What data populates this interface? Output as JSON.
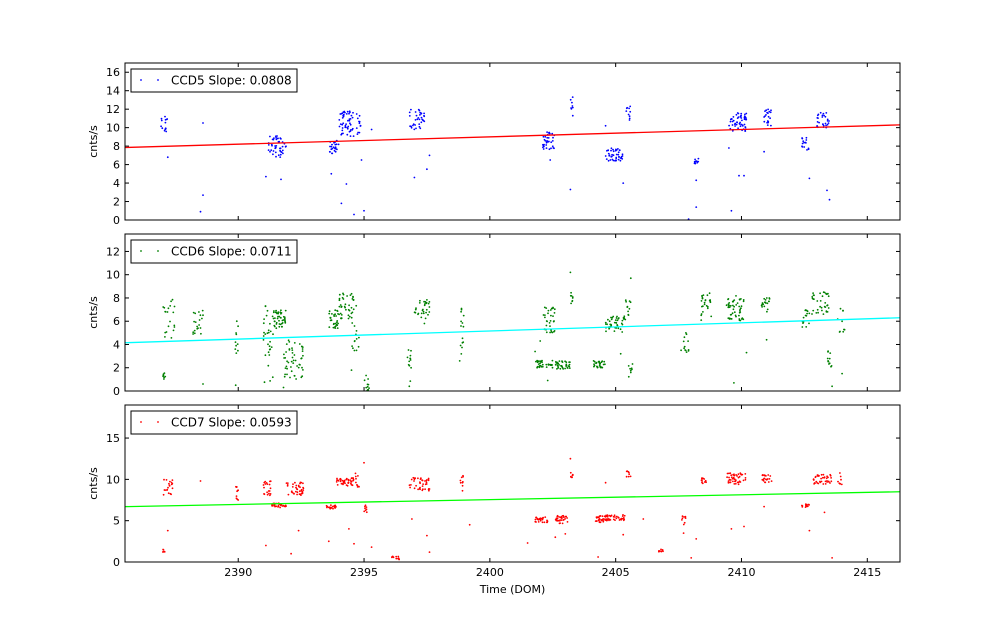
{
  "chart_data": [
    {
      "type": "scatter",
      "ylabel": "cnts/s",
      "xlim": [
        2385.5,
        2416.3
      ],
      "ylim": [
        0,
        17
      ],
      "yticks": [
        0,
        2,
        4,
        6,
        8,
        10,
        12,
        14,
        16
      ],
      "xticks": [
        2390,
        2395,
        2400,
        2405,
        2410,
        2415
      ],
      "legend": {
        "label": "CCD5 Slope: 0.0808",
        "placement": "top-left"
      },
      "point_color": "#0000ff",
      "fit_color": "#ff0000",
      "fit_line": {
        "x": [
          2385.5,
          2416.3
        ],
        "y": [
          7.85,
          10.3
        ]
      },
      "clusters": [
        {
          "x0": 2386.9,
          "x1": 2387.2,
          "ymin": 9.2,
          "ymax": 11.2,
          "n": 14
        },
        {
          "x0": 2391.2,
          "x1": 2391.9,
          "ymin": 6.8,
          "ymax": 9.2,
          "n": 45
        },
        {
          "x0": 2393.6,
          "x1": 2394.0,
          "ymin": 7.2,
          "ymax": 8.6,
          "n": 25
        },
        {
          "x0": 2394.0,
          "x1": 2394.6,
          "ymin": 9.0,
          "ymax": 11.8,
          "n": 50
        },
        {
          "x0": 2394.7,
          "x1": 2394.9,
          "ymin": 9.2,
          "ymax": 11.5,
          "n": 12
        },
        {
          "x0": 2396.8,
          "x1": 2397.4,
          "ymin": 9.8,
          "ymax": 12.0,
          "n": 35
        },
        {
          "x0": 2402.1,
          "x1": 2402.6,
          "ymin": 7.6,
          "ymax": 9.6,
          "n": 35
        },
        {
          "x0": 2403.2,
          "x1": 2403.3,
          "ymin": 11.0,
          "ymax": 13.4,
          "n": 8
        },
        {
          "x0": 2404.6,
          "x1": 2405.3,
          "ymin": 6.4,
          "ymax": 7.8,
          "n": 45
        },
        {
          "x0": 2405.4,
          "x1": 2405.6,
          "ymin": 10.8,
          "ymax": 12.3,
          "n": 10
        },
        {
          "x0": 2408.1,
          "x1": 2408.3,
          "ymin": 6.0,
          "ymax": 6.9,
          "n": 10
        },
        {
          "x0": 2409.5,
          "x1": 2410.2,
          "ymin": 9.6,
          "ymax": 11.6,
          "n": 55
        },
        {
          "x0": 2410.9,
          "x1": 2411.2,
          "ymin": 10.2,
          "ymax": 12.2,
          "n": 20
        },
        {
          "x0": 2412.4,
          "x1": 2412.7,
          "ymin": 7.5,
          "ymax": 9.0,
          "n": 15
        },
        {
          "x0": 2413.0,
          "x1": 2413.5,
          "ymin": 10.0,
          "ymax": 11.8,
          "n": 28
        }
      ],
      "outliers": [
        [
          2388.6,
          10.5
        ],
        [
          2388.5,
          0.9
        ],
        [
          2388.6,
          2.7
        ],
        [
          2387.2,
          6.8
        ],
        [
          2391.1,
          4.7
        ],
        [
          2391.7,
          4.4
        ],
        [
          2393.7,
          5.0
        ],
        [
          2394.1,
          1.8
        ],
        [
          2394.3,
          3.9
        ],
        [
          2394.6,
          0.6
        ],
        [
          2395.0,
          1.0
        ],
        [
          2394.9,
          6.5
        ],
        [
          2397.0,
          4.6
        ],
        [
          2397.5,
          5.5
        ],
        [
          2395.3,
          9.8
        ],
        [
          2397.6,
          7.0
        ],
        [
          2402.4,
          6.5
        ],
        [
          2403.2,
          3.3
        ],
        [
          2404.6,
          10.2
        ],
        [
          2405.3,
          4.0
        ],
        [
          2408.2,
          1.4
        ],
        [
          2408.2,
          4.3
        ],
        [
          2407.9,
          0.1
        ],
        [
          2409.6,
          1.0
        ],
        [
          2409.9,
          4.8
        ],
        [
          2410.1,
          4.8
        ],
        [
          2410.9,
          7.4
        ],
        [
          2412.7,
          4.5
        ],
        [
          2413.4,
          3.2
        ],
        [
          2413.5,
          2.2
        ],
        [
          2409.5,
          7.8
        ]
      ]
    },
    {
      "type": "scatter",
      "ylabel": "cnts/s",
      "xlim": [
        2385.5,
        2416.3
      ],
      "ylim": [
        0,
        13.5
      ],
      "yticks": [
        0,
        2,
        4,
        6,
        8,
        10,
        12
      ],
      "xticks": [
        2390,
        2395,
        2400,
        2405,
        2410,
        2415
      ],
      "legend": {
        "label": "CCD6 Slope: 0.0711",
        "placement": "top-left"
      },
      "point_color": "#008000",
      "fit_color": "#00ffff",
      "fit_line": {
        "x": [
          2385.5,
          2416.3
        ],
        "y": [
          4.15,
          6.3
        ]
      },
      "clusters": [
        {
          "x0": 2387.0,
          "x1": 2387.1,
          "ymin": 1.0,
          "ymax": 1.6,
          "n": 8
        },
        {
          "x0": 2387.0,
          "x1": 2387.5,
          "ymin": 4.5,
          "ymax": 8.0,
          "n": 20
        },
        {
          "x0": 2388.2,
          "x1": 2388.6,
          "ymin": 4.8,
          "ymax": 7.0,
          "n": 20
        },
        {
          "x0": 2389.8,
          "x1": 2390.0,
          "ymin": 3.0,
          "ymax": 6.2,
          "n": 10
        },
        {
          "x0": 2391.0,
          "x1": 2391.4,
          "ymin": 0.5,
          "ymax": 7.5,
          "n": 30
        },
        {
          "x0": 2391.4,
          "x1": 2391.9,
          "ymin": 5.4,
          "ymax": 7.0,
          "n": 45
        },
        {
          "x0": 2391.8,
          "x1": 2392.6,
          "ymin": 1.0,
          "ymax": 4.5,
          "n": 50
        },
        {
          "x0": 2393.6,
          "x1": 2394.0,
          "ymin": 5.4,
          "ymax": 7.0,
          "n": 30
        },
        {
          "x0": 2394.0,
          "x1": 2394.6,
          "ymin": 6.2,
          "ymax": 8.4,
          "n": 40
        },
        {
          "x0": 2394.5,
          "x1": 2394.8,
          "ymin": 3.0,
          "ymax": 7.5,
          "n": 15
        },
        {
          "x0": 2395.0,
          "x1": 2395.2,
          "ymin": 0.0,
          "ymax": 1.5,
          "n": 12
        },
        {
          "x0": 2396.7,
          "x1": 2396.9,
          "ymin": 0.8,
          "ymax": 3.8,
          "n": 12
        },
        {
          "x0": 2397.0,
          "x1": 2397.6,
          "ymin": 6.2,
          "ymax": 8.0,
          "n": 30
        },
        {
          "x0": 2398.8,
          "x1": 2399.0,
          "ymin": 2.5,
          "ymax": 7.5,
          "n": 15
        },
        {
          "x0": 2401.8,
          "x1": 2402.5,
          "ymin": 2.0,
          "ymax": 2.7,
          "n": 35
        },
        {
          "x0": 2402.1,
          "x1": 2402.6,
          "ymin": 5.0,
          "ymax": 7.2,
          "n": 35
        },
        {
          "x0": 2402.6,
          "x1": 2403.2,
          "ymin": 1.9,
          "ymax": 2.6,
          "n": 35
        },
        {
          "x0": 2403.2,
          "x1": 2403.3,
          "ymin": 7.4,
          "ymax": 8.5,
          "n": 8
        },
        {
          "x0": 2404.1,
          "x1": 2404.6,
          "ymin": 2.0,
          "ymax": 2.6,
          "n": 30
        },
        {
          "x0": 2404.6,
          "x1": 2405.4,
          "ymin": 5.0,
          "ymax": 6.5,
          "n": 45
        },
        {
          "x0": 2405.4,
          "x1": 2405.6,
          "ymin": 6.5,
          "ymax": 8.0,
          "n": 10
        },
        {
          "x0": 2405.5,
          "x1": 2405.7,
          "ymin": 1.0,
          "ymax": 2.8,
          "n": 8
        },
        {
          "x0": 2407.7,
          "x1": 2407.9,
          "ymin": 3.0,
          "ymax": 5.0,
          "n": 12
        },
        {
          "x0": 2408.4,
          "x1": 2408.8,
          "ymin": 6.2,
          "ymax": 8.5,
          "n": 25
        },
        {
          "x0": 2409.4,
          "x1": 2410.1,
          "ymin": 6.0,
          "ymax": 8.2,
          "n": 50
        },
        {
          "x0": 2410.8,
          "x1": 2411.2,
          "ymin": 6.8,
          "ymax": 8.0,
          "n": 20
        },
        {
          "x0": 2412.4,
          "x1": 2412.7,
          "ymin": 5.5,
          "ymax": 7.0,
          "n": 15
        },
        {
          "x0": 2412.8,
          "x1": 2413.5,
          "ymin": 6.5,
          "ymax": 8.5,
          "n": 35
        },
        {
          "x0": 2413.4,
          "x1": 2413.6,
          "ymin": 1.5,
          "ymax": 3.5,
          "n": 12
        },
        {
          "x0": 2413.8,
          "x1": 2414.1,
          "ymin": 5.0,
          "ymax": 7.5,
          "n": 10
        }
      ],
      "outliers": [
        [
          2389.9,
          0.5
        ],
        [
          2388.6,
          0.6
        ],
        [
          2391.8,
          0.3
        ],
        [
          2394.5,
          1.8
        ],
        [
          2396.8,
          0.4
        ],
        [
          2397.4,
          5.8
        ],
        [
          2401.8,
          3.4
        ],
        [
          2402.3,
          0.9
        ],
        [
          2403.2,
          10.2
        ],
        [
          2405.2,
          3.2
        ],
        [
          2405.6,
          9.7
        ],
        [
          2407.6,
          3.5
        ],
        [
          2409.7,
          0.7
        ],
        [
          2410.2,
          3.3
        ],
        [
          2411.0,
          4.4
        ],
        [
          2413.6,
          0.4
        ],
        [
          2414.0,
          1.5
        ],
        [
          2408.4,
          6.1
        ],
        [
          2402.0,
          4.3
        ]
      ]
    },
    {
      "type": "scatter",
      "ylabel": "cnts/s",
      "xlabel": "Time (DOM)",
      "xlim": [
        2385.5,
        2416.3
      ],
      "ylim": [
        0,
        19
      ],
      "yticks": [
        0,
        5,
        10,
        15
      ],
      "xticks": [
        2390,
        2395,
        2400,
        2405,
        2410,
        2415
      ],
      "xtick_labels": [
        "2390",
        "2395",
        "2400",
        "2405",
        "2410",
        "2415"
      ],
      "legend": {
        "label": "CCD7 Slope: 0.0593",
        "placement": "top-left"
      },
      "point_color": "#ff0000",
      "fit_color": "#00ff00",
      "fit_line": {
        "x": [
          2385.5,
          2416.3
        ],
        "y": [
          6.7,
          8.5
        ]
      },
      "clusters": [
        {
          "x0": 2387.0,
          "x1": 2387.1,
          "ymin": 1.2,
          "ymax": 1.6,
          "n": 6
        },
        {
          "x0": 2387.0,
          "x1": 2387.4,
          "ymin": 8.0,
          "ymax": 10.0,
          "n": 20
        },
        {
          "x0": 2389.9,
          "x1": 2390.0,
          "ymin": 7.5,
          "ymax": 9.5,
          "n": 10
        },
        {
          "x0": 2391.0,
          "x1": 2391.3,
          "ymin": 8.0,
          "ymax": 9.8,
          "n": 20
        },
        {
          "x0": 2391.3,
          "x1": 2391.9,
          "ymin": 6.6,
          "ymax": 7.1,
          "n": 35
        },
        {
          "x0": 2391.9,
          "x1": 2392.6,
          "ymin": 8.0,
          "ymax": 9.8,
          "n": 40
        },
        {
          "x0": 2393.5,
          "x1": 2393.9,
          "ymin": 6.4,
          "ymax": 6.9,
          "n": 20
        },
        {
          "x0": 2393.9,
          "x1": 2394.6,
          "ymin": 9.2,
          "ymax": 10.2,
          "n": 45
        },
        {
          "x0": 2394.6,
          "x1": 2394.8,
          "ymin": 9.0,
          "ymax": 10.8,
          "n": 10
        },
        {
          "x0": 2395.0,
          "x1": 2395.2,
          "ymin": 5.8,
          "ymax": 7.0,
          "n": 8
        },
        {
          "x0": 2396.1,
          "x1": 2396.4,
          "ymin": 0.3,
          "ymax": 0.7,
          "n": 12
        },
        {
          "x0": 2396.8,
          "x1": 2397.6,
          "ymin": 8.6,
          "ymax": 10.2,
          "n": 40
        },
        {
          "x0": 2398.8,
          "x1": 2399.0,
          "ymin": 8.0,
          "ymax": 10.5,
          "n": 10
        },
        {
          "x0": 2401.8,
          "x1": 2402.3,
          "ymin": 4.8,
          "ymax": 5.6,
          "n": 30
        },
        {
          "x0": 2402.6,
          "x1": 2403.1,
          "ymin": 4.6,
          "ymax": 5.6,
          "n": 30
        },
        {
          "x0": 2403.2,
          "x1": 2403.3,
          "ymin": 10.2,
          "ymax": 11.0,
          "n": 8
        },
        {
          "x0": 2404.1,
          "x1": 2404.6,
          "ymin": 4.8,
          "ymax": 5.6,
          "n": 30
        },
        {
          "x0": 2404.6,
          "x1": 2405.4,
          "ymin": 5.0,
          "ymax": 5.7,
          "n": 40
        },
        {
          "x0": 2405.4,
          "x1": 2405.6,
          "ymin": 10.2,
          "ymax": 11.0,
          "n": 8
        },
        {
          "x0": 2406.7,
          "x1": 2406.9,
          "ymin": 1.2,
          "ymax": 1.6,
          "n": 8
        },
        {
          "x0": 2407.6,
          "x1": 2407.8,
          "ymin": 4.5,
          "ymax": 5.6,
          "n": 8
        },
        {
          "x0": 2408.4,
          "x1": 2408.6,
          "ymin": 9.4,
          "ymax": 10.2,
          "n": 12
        },
        {
          "x0": 2409.4,
          "x1": 2410.2,
          "ymin": 9.4,
          "ymax": 10.8,
          "n": 45
        },
        {
          "x0": 2410.8,
          "x1": 2411.2,
          "ymin": 9.6,
          "ymax": 10.6,
          "n": 20
        },
        {
          "x0": 2412.4,
          "x1": 2412.7,
          "ymin": 6.5,
          "ymax": 7.0,
          "n": 12
        },
        {
          "x0": 2412.8,
          "x1": 2413.6,
          "ymin": 9.4,
          "ymax": 10.6,
          "n": 40
        },
        {
          "x0": 2413.8,
          "x1": 2414.0,
          "ymin": 9.2,
          "ymax": 10.8,
          "n": 8
        }
      ],
      "outliers": [
        [
          2388.5,
          9.8
        ],
        [
          2387.2,
          3.8
        ],
        [
          2391.1,
          2.0
        ],
        [
          2392.1,
          1.0
        ],
        [
          2392.4,
          3.8
        ],
        [
          2393.6,
          2.5
        ],
        [
          2394.4,
          4.0
        ],
        [
          2394.6,
          2.2
        ],
        [
          2395.3,
          1.8
        ],
        [
          2395.0,
          12.0
        ],
        [
          2396.9,
          5.2
        ],
        [
          2397.6,
          1.2
        ],
        [
          2397.5,
          3.2
        ],
        [
          2399.2,
          4.5
        ],
        [
          2401.5,
          2.3
        ],
        [
          2402.6,
          3.0
        ],
        [
          2403.2,
          12.5
        ],
        [
          2403.0,
          3.4
        ],
        [
          2404.6,
          9.6
        ],
        [
          2404.3,
          0.6
        ],
        [
          2405.3,
          3.3
        ],
        [
          2407.7,
          3.5
        ],
        [
          2408.2,
          2.8
        ],
        [
          2408.0,
          0.5
        ],
        [
          2409.6,
          4.0
        ],
        [
          2410.1,
          4.3
        ],
        [
          2410.9,
          6.7
        ],
        [
          2412.7,
          3.8
        ],
        [
          2413.6,
          0.5
        ],
        [
          2413.3,
          6.0
        ],
        [
          2406.1,
          5.2
        ]
      ]
    }
  ]
}
